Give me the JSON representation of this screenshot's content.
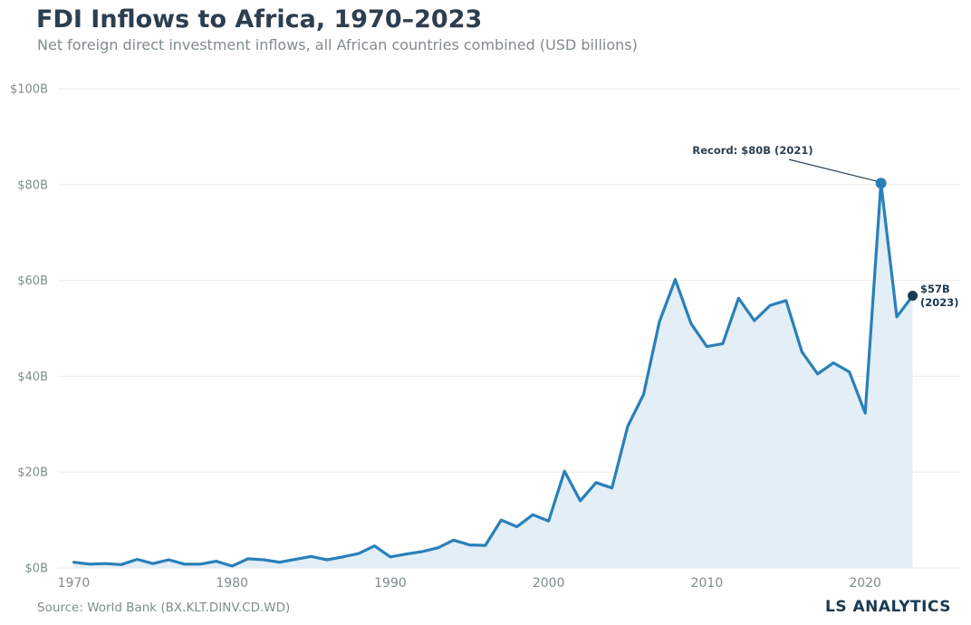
{
  "title": "FDI Inflows to Africa, 1970–2023",
  "subtitle": "Net foreign direct investment inflows, all African countries combined (USD billions)",
  "source": "Source: World Bank (BX.KLT.DINV.CD.WD)",
  "brand": "LS ANALYTICS",
  "chart_data": {
    "type": "area",
    "x": [
      1970,
      1971,
      1972,
      1973,
      1974,
      1975,
      1976,
      1977,
      1978,
      1979,
      1980,
      1981,
      1982,
      1983,
      1984,
      1985,
      1986,
      1987,
      1988,
      1989,
      1990,
      1991,
      1992,
      1993,
      1994,
      1995,
      1996,
      1997,
      1998,
      1999,
      2000,
      2001,
      2002,
      2003,
      2004,
      2005,
      2006,
      2007,
      2008,
      2009,
      2010,
      2011,
      2012,
      2013,
      2014,
      2015,
      2016,
      2017,
      2018,
      2019,
      2020,
      2021,
      2022,
      2023
    ],
    "series": [
      {
        "values": [
          1.2,
          0.8,
          0.9,
          0.7,
          1.8,
          0.9,
          1.7,
          0.8,
          0.8,
          1.4,
          0.4,
          1.9,
          1.7,
          1.2,
          1.8,
          2.4,
          1.7,
          2.3,
          3.0,
          4.6,
          2.3,
          2.9,
          3.4,
          4.2,
          5.8,
          4.8,
          4.7,
          10.0,
          8.6,
          11.1,
          9.8,
          20.2,
          14.0,
          17.8,
          16.7,
          29.6,
          36.2,
          51.4,
          60.2,
          51.0,
          46.2,
          46.8,
          56.3,
          51.6,
          54.8,
          55.8,
          45.1,
          40.5,
          42.8,
          40.9,
          32.3,
          80.3,
          52.4,
          56.8
        ]
      }
    ],
    "xlim": [
      1969,
      2026
    ],
    "ylim": [
      0,
      100
    ],
    "x_ticks": [
      1970,
      1980,
      1990,
      2000,
      2010,
      2020
    ],
    "x_tick_labels": [
      "1970",
      "1980",
      "1990",
      "2000",
      "2010",
      "2020"
    ],
    "y_ticks": [
      0,
      20,
      40,
      60,
      80,
      100
    ],
    "y_tick_labels": [
      "$0B",
      "$20B",
      "$40B",
      "$60B",
      "$80B",
      "$100B"
    ],
    "grid": "horizontal",
    "annotations": {
      "record": {
        "text": "Record: $80B (2021)",
        "x": 2021,
        "y": 80.3
      },
      "latest": {
        "line1": "$57B",
        "line2": "(2023)",
        "x": 2023,
        "y": 56.8
      }
    },
    "colors": {
      "line": "#2980b9",
      "fill": "#e3eef6",
      "grid": "#ebebeb",
      "tick_label": "#7f8c8d",
      "annotation": "#2c3e50",
      "last_point": "#1a3a52"
    }
  }
}
